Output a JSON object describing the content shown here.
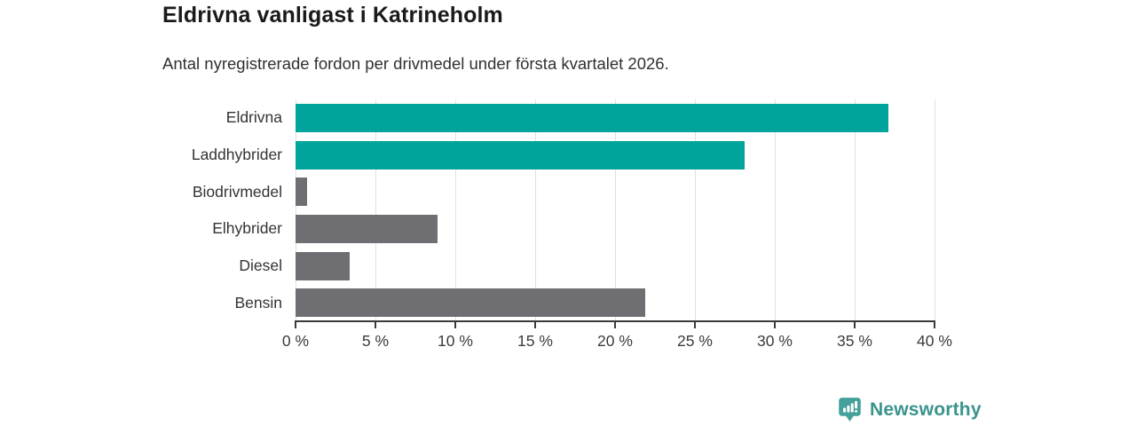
{
  "chart_data": {
    "type": "bar",
    "orientation": "horizontal",
    "title": "Eldrivna vanligast i Katrineholm",
    "subtitle": "Antal nyregistrerade fordon per drivmedel under första kvartalet 2026.",
    "categories": [
      "Eldrivna",
      "Laddhybrider",
      "Biodrivmedel",
      "Elhybrider",
      "Diesel",
      "Bensin"
    ],
    "values": [
      37.1,
      28.1,
      0.7,
      8.9,
      3.4,
      21.9
    ],
    "bar_colors": [
      "#00a49a",
      "#00a49a",
      "#6e6e73",
      "#6e6e73",
      "#6e6e73",
      "#6e6e73"
    ],
    "xlim": [
      0,
      40
    ],
    "x_tick_step": 5,
    "x_tick_labels": [
      "0 %",
      "5 %",
      "10 %",
      "15 %",
      "20 %",
      "25 %",
      "30 %",
      "35 %",
      "40 %"
    ],
    "grid": "vertical-only",
    "legend": "none",
    "accent_colors": {
      "teal": "#00a49a",
      "gray": "#6e6e73"
    }
  },
  "branding": {
    "name": "Newsworthy",
    "icon": "newsworthy-chart-pin-icon",
    "text_color": "#3a938c",
    "icon_color": "#43a09a"
  }
}
